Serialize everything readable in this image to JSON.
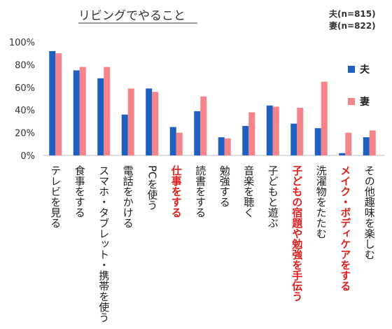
{
  "chart_data": {
    "type": "bar",
    "title": "リビングでやること",
    "sample_sizes": [
      "夫(n=815)",
      "妻(n=822)"
    ],
    "ylim": [
      0,
      100
    ],
    "yticks": [
      "0%",
      "20%",
      "40%",
      "60%",
      "80%",
      "100%"
    ],
    "grid": false,
    "legend_position": "right",
    "categories": [
      "テレビを見る",
      "食事をする",
      "スマホ・タブレット・携帯を使う",
      "電話をかける",
      "PCを使う",
      "仕事をする",
      "読書をする",
      "勉強する",
      "音楽を聴く",
      "子どもと遊ぶ",
      "子どもの宿題や勉強を手伝う",
      "洗濯物をたたむ",
      "メイク・ボディケアをする",
      "その他趣味を楽しむ"
    ],
    "highlighted_categories": [
      "仕事をする",
      "子どもの宿題や勉強を手伝う",
      "メイク・ボディケアをする"
    ],
    "series": [
      {
        "name": "夫",
        "color": "#1f5fbf",
        "values": [
          92,
          75,
          68,
          36,
          59,
          25,
          39,
          16,
          26,
          44,
          28,
          24,
          2,
          16
        ]
      },
      {
        "name": "妻",
        "color": "#f4838a",
        "values": [
          90,
          78,
          78,
          59,
          56,
          20,
          52,
          15,
          38,
          43,
          42,
          65,
          20,
          22
        ]
      }
    ]
  }
}
